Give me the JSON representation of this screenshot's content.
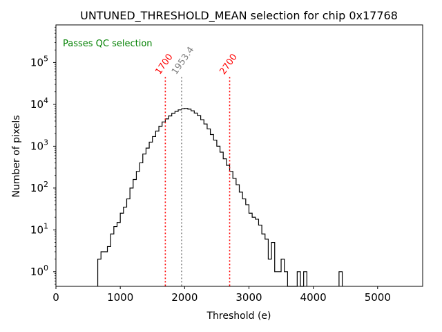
{
  "chart_data": {
    "type": "histogram",
    "title": "UNTUNED_THRESHOLD_MEAN selection for chip 0x17768",
    "xlabel": "Threshold (e)",
    "ylabel": "Number of pixels",
    "xlim": [
      0,
      5700
    ],
    "ylim_log10": [
      -0.35,
      5.9
    ],
    "yscale": "log",
    "x_ticks": [
      {
        "value": 0,
        "label": "0"
      },
      {
        "value": 1000,
        "label": "1000"
      },
      {
        "value": 2000,
        "label": "2000"
      },
      {
        "value": 3000,
        "label": "3000"
      },
      {
        "value": 4000,
        "label": "4000"
      },
      {
        "value": 5000,
        "label": "5000"
      }
    ],
    "y_ticks": [
      {
        "value": 0,
        "base": "10",
        "exp": "0"
      },
      {
        "value": 1,
        "base": "10",
        "exp": "1"
      },
      {
        "value": 2,
        "base": "10",
        "exp": "2"
      },
      {
        "value": 3,
        "base": "10",
        "exp": "3"
      },
      {
        "value": 4,
        "base": "10",
        "exp": "4"
      },
      {
        "value": 5,
        "base": "10",
        "exp": "5"
      }
    ],
    "bin_width": 50,
    "bins": [
      {
        "x0": 650,
        "count": 2
      },
      {
        "x0": 700,
        "count": 3
      },
      {
        "x0": 750,
        "count": 3
      },
      {
        "x0": 800,
        "count": 4
      },
      {
        "x0": 850,
        "count": 8
      },
      {
        "x0": 900,
        "count": 12
      },
      {
        "x0": 950,
        "count": 15
      },
      {
        "x0": 1000,
        "count": 25
      },
      {
        "x0": 1050,
        "count": 35
      },
      {
        "x0": 1100,
        "count": 55
      },
      {
        "x0": 1150,
        "count": 100
      },
      {
        "x0": 1200,
        "count": 160
      },
      {
        "x0": 1250,
        "count": 250
      },
      {
        "x0": 1300,
        "count": 400
      },
      {
        "x0": 1350,
        "count": 650
      },
      {
        "x0": 1400,
        "count": 900
      },
      {
        "x0": 1450,
        "count": 1250
      },
      {
        "x0": 1500,
        "count": 1700
      },
      {
        "x0": 1550,
        "count": 2300
      },
      {
        "x0": 1600,
        "count": 3000
      },
      {
        "x0": 1650,
        "count": 3800
      },
      {
        "x0": 1700,
        "count": 4500
      },
      {
        "x0": 1750,
        "count": 5300
      },
      {
        "x0": 1800,
        "count": 6100
      },
      {
        "x0": 1850,
        "count": 6800
      },
      {
        "x0": 1900,
        "count": 7400
      },
      {
        "x0": 1950,
        "count": 7900
      },
      {
        "x0": 2000,
        "count": 8000
      },
      {
        "x0": 2050,
        "count": 7700
      },
      {
        "x0": 2100,
        "count": 7000
      },
      {
        "x0": 2150,
        "count": 6200
      },
      {
        "x0": 2200,
        "count": 5400
      },
      {
        "x0": 2250,
        "count": 4300
      },
      {
        "x0": 2300,
        "count": 3400
      },
      {
        "x0": 2350,
        "count": 2600
      },
      {
        "x0": 2400,
        "count": 1900
      },
      {
        "x0": 2450,
        "count": 1400
      },
      {
        "x0": 2500,
        "count": 1000
      },
      {
        "x0": 2550,
        "count": 720
      },
      {
        "x0": 2600,
        "count": 500
      },
      {
        "x0": 2650,
        "count": 350
      },
      {
        "x0": 2700,
        "count": 250
      },
      {
        "x0": 2750,
        "count": 170
      },
      {
        "x0": 2800,
        "count": 120
      },
      {
        "x0": 2850,
        "count": 80
      },
      {
        "x0": 2900,
        "count": 55
      },
      {
        "x0": 2950,
        "count": 40
      },
      {
        "x0": 3000,
        "count": 25
      },
      {
        "x0": 3050,
        "count": 20
      },
      {
        "x0": 3100,
        "count": 18
      },
      {
        "x0": 3150,
        "count": 13
      },
      {
        "x0": 3200,
        "count": 8
      },
      {
        "x0": 3250,
        "count": 6
      },
      {
        "x0": 3300,
        "count": 2
      },
      {
        "x0": 3350,
        "count": 5
      },
      {
        "x0": 3400,
        "count": 1
      },
      {
        "x0": 3450,
        "count": 1
      },
      {
        "x0": 3500,
        "count": 2
      },
      {
        "x0": 3550,
        "count": 1
      },
      {
        "x0": 3600,
        "count": 0
      },
      {
        "x0": 3650,
        "count": 0
      },
      {
        "x0": 3700,
        "count": 0
      },
      {
        "x0": 3750,
        "count": 1
      },
      {
        "x0": 3800,
        "count": 0
      },
      {
        "x0": 3850,
        "count": 1
      },
      {
        "x0": 4400,
        "count": 1
      }
    ],
    "vlines": [
      {
        "x": 1700,
        "label": "1700",
        "color": "#ff0000"
      },
      {
        "x": 1953.4,
        "label": "1953.4",
        "color": "#808080"
      },
      {
        "x": 2700,
        "label": "2700",
        "color": "#ff0000"
      }
    ],
    "annotation": {
      "text": "Passes QC selection",
      "color": "#008000"
    },
    "hist_color": "#000000"
  }
}
